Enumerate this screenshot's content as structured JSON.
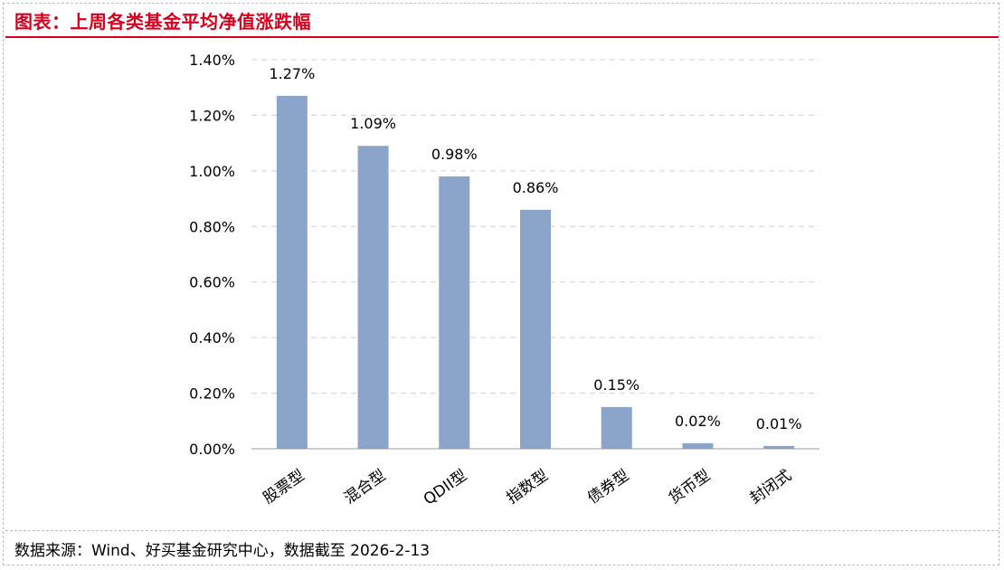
{
  "header": {
    "title": "图表：上周各类基金平均净值涨跌幅"
  },
  "footer": {
    "source": "数据来源：Wind、好买基金研究中心，数据截至 2026-2-13"
  },
  "colors": {
    "accent": "#d4001e",
    "bar": "#8aa5c9",
    "grid": "#d0d0d0",
    "axis": "#9a9a9a"
  },
  "chart_data": {
    "type": "bar",
    "categories": [
      "股票型",
      "混合型",
      "QDII型",
      "指数型",
      "债券型",
      "货币型",
      "封闭式"
    ],
    "values": [
      1.27,
      1.09,
      0.98,
      0.86,
      0.15,
      0.02,
      0.01
    ],
    "data_labels": [
      "1.27%",
      "1.09%",
      "0.98%",
      "0.86%",
      "0.15%",
      "0.02%",
      "0.01%"
    ],
    "yticks": [
      "0.00%",
      "0.20%",
      "0.40%",
      "0.60%",
      "0.80%",
      "1.00%",
      "1.20%",
      "1.40%"
    ],
    "ylim": [
      0,
      1.4
    ],
    "grid": true,
    "legend": "none",
    "xlabel": "",
    "ylabel": ""
  }
}
